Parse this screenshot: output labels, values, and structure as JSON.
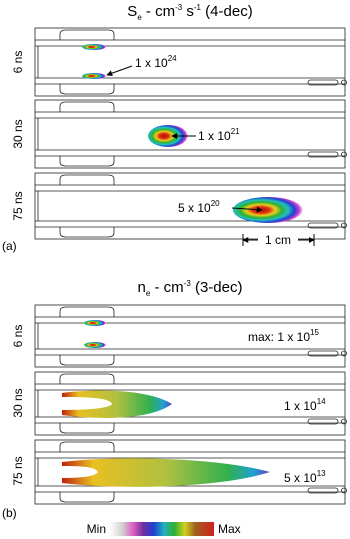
{
  "panel_a": {
    "label": "(a)",
    "title": [
      "S",
      "e",
      " - cm",
      "-3",
      " s",
      "-1",
      " (4-dec)"
    ],
    "rows": [
      {
        "time": "6 ns",
        "annotation": [
          "1 x 10",
          "24"
        ]
      },
      {
        "time": "30 ns",
        "annotation": [
          "1 x 10",
          "21"
        ]
      },
      {
        "time": "75 ns",
        "annotation": [
          "5 x 10",
          "20"
        ]
      }
    ],
    "scale_bar": "1 cm"
  },
  "panel_b": {
    "label": "(b)",
    "title": [
      "n",
      "e",
      " - cm",
      "-3",
      " (3-dec)"
    ],
    "rows": [
      {
        "time": "6 ns",
        "annotation": [
          "max: 1 x 10",
          "15"
        ]
      },
      {
        "time": "30 ns",
        "annotation": [
          "1 x 10",
          "14"
        ]
      },
      {
        "time": "75 ns",
        "annotation": [
          "5 x 10",
          "13"
        ]
      }
    ]
  },
  "colorbar": {
    "min": "Min",
    "max": "Max"
  }
}
